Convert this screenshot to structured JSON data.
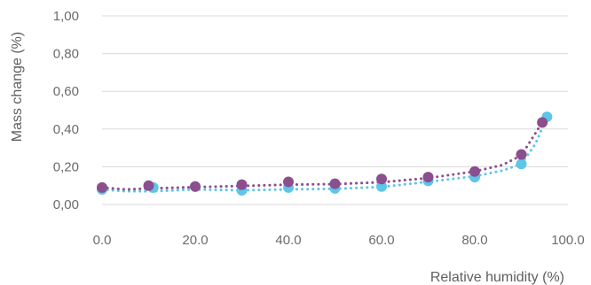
{
  "chart_data": {
    "type": "scatter",
    "title": "",
    "xlabel": "Relative humidity (%)",
    "ylabel": "Mass change (%)",
    "xlim": [
      0,
      100
    ],
    "ylim": [
      0,
      1
    ],
    "x_ticks": [
      "0.0",
      "20.0",
      "40.0",
      "60.0",
      "80.0",
      "100.0"
    ],
    "y_ticks": [
      "0,00",
      "0,20",
      "0,40",
      "0,60",
      "0,80",
      "1,00"
    ],
    "grid": "horizontal",
    "series": [
      {
        "color": "#5ec6e8",
        "points": [
          [
            0,
            0.08
          ],
          [
            11,
            0.09
          ],
          [
            20,
            0.095
          ],
          [
            30,
            0.075
          ],
          [
            40,
            0.09
          ],
          [
            50,
            0.085
          ],
          [
            60,
            0.095
          ],
          [
            70,
            0.125
          ],
          [
            80,
            0.145
          ],
          [
            90,
            0.215
          ],
          [
            95.5,
            0.465
          ]
        ],
        "trend": [
          [
            0,
            0.08
          ],
          [
            5,
            0.07
          ],
          [
            11,
            0.07
          ],
          [
            20,
            0.08
          ],
          [
            30,
            0.075
          ],
          [
            40,
            0.08
          ],
          [
            50,
            0.083
          ],
          [
            60,
            0.093
          ],
          [
            70,
            0.12
          ],
          [
            80,
            0.15
          ],
          [
            86,
            0.18
          ],
          [
            90,
            0.215
          ],
          [
            93,
            0.32
          ],
          [
            95.5,
            0.465
          ]
        ]
      },
      {
        "color": "#8b4e8e",
        "points": [
          [
            0,
            0.09
          ],
          [
            10,
            0.1
          ],
          [
            20,
            0.095
          ],
          [
            30,
            0.105
          ],
          [
            40,
            0.12
          ],
          [
            50,
            0.11
          ],
          [
            60,
            0.135
          ],
          [
            70,
            0.145
          ],
          [
            80,
            0.175
          ],
          [
            90,
            0.265
          ],
          [
            94.5,
            0.435
          ]
        ],
        "trend": [
          [
            0,
            0.09
          ],
          [
            5,
            0.08
          ],
          [
            10,
            0.085
          ],
          [
            20,
            0.092
          ],
          [
            30,
            0.098
          ],
          [
            40,
            0.105
          ],
          [
            50,
            0.108
          ],
          [
            60,
            0.118
          ],
          [
            70,
            0.14
          ],
          [
            80,
            0.175
          ],
          [
            86,
            0.21
          ],
          [
            90,
            0.26
          ],
          [
            94.5,
            0.435
          ]
        ]
      }
    ]
  }
}
